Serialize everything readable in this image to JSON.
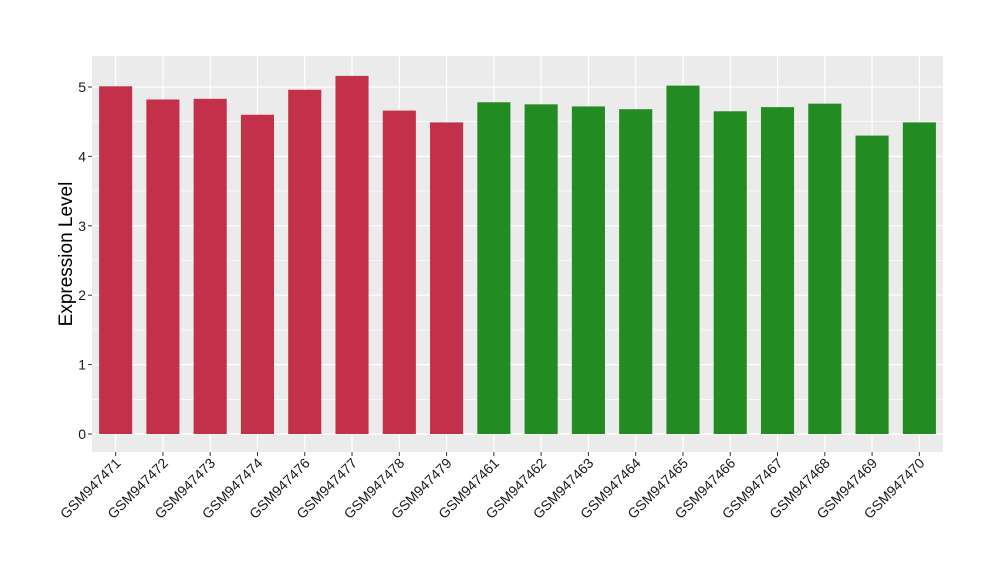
{
  "chart_data": {
    "type": "bar",
    "title": "",
    "xlabel": "",
    "ylabel": "Expression Level",
    "ylim": [
      0,
      5.4
    ],
    "yticks": [
      0,
      1,
      2,
      3,
      4,
      5
    ],
    "grid": true,
    "legend": "none",
    "panel_background": "#ebebeb",
    "gridline_color": "#ffffff",
    "categories": [
      "GSM947471",
      "GSM947472",
      "GSM947473",
      "GSM947474",
      "GSM947476",
      "GSM947477",
      "GSM947478",
      "GSM947479",
      "GSM947461",
      "GSM947462",
      "GSM947463",
      "GSM947464",
      "GSM947465",
      "GSM947466",
      "GSM947467",
      "GSM947468",
      "GSM947469",
      "GSM947470"
    ],
    "values": [
      5.01,
      4.82,
      4.83,
      4.6,
      4.96,
      5.16,
      4.66,
      4.49,
      4.78,
      4.75,
      4.72,
      4.68,
      5.02,
      4.65,
      4.71,
      4.76,
      4.3,
      4.49
    ],
    "colors": [
      "#c3304a",
      "#c3304a",
      "#c3304a",
      "#c3304a",
      "#c3304a",
      "#c3304a",
      "#c3304a",
      "#c3304a",
      "#228b22",
      "#228b22",
      "#228b22",
      "#228b22",
      "#228b22",
      "#228b22",
      "#228b22",
      "#228b22",
      "#228b22",
      "#228b22"
    ]
  }
}
